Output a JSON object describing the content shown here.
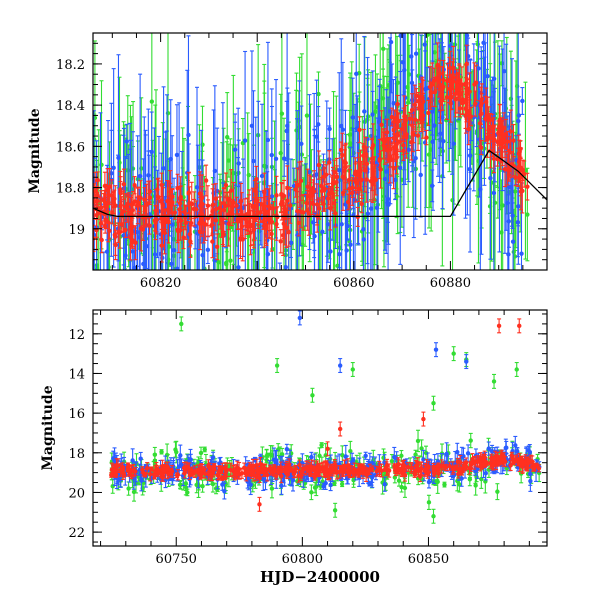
{
  "chart_data": [
    {
      "type": "scatter",
      "title": "",
      "xlabel": "",
      "ylabel": "Magnitude",
      "xlim": [
        60806,
        60900
      ],
      "ylim": [
        19.2,
        18.05
      ],
      "y_inverted": true,
      "xticks": [
        60820,
        60840,
        60860,
        60880
      ],
      "yticks": [
        18.2,
        18.4,
        18.6,
        18.8,
        19
      ],
      "ytick_labels": [
        "18.2",
        "18.4",
        "18.6",
        "18.8",
        "19"
      ],
      "series": [
        {
          "color": "#2a5cff",
          "note": "blue filter points with error bars"
        },
        {
          "color": "#33dd33",
          "note": "green filter points with error bars"
        },
        {
          "color": "#ff3020",
          "note": "red filter points with error bars"
        }
      ],
      "baseline_light_curve": {
        "x": [
          60806,
          60815,
          60825,
          60835,
          60845,
          60855,
          60862,
          60868,
          60873,
          60877,
          60880,
          60883,
          60887,
          60892,
          60900
        ],
        "y": [
          18.93,
          18.93,
          18.94,
          18.93,
          18.9,
          18.82,
          18.72,
          18.58,
          18.45,
          18.35,
          18.32,
          18.36,
          18.48,
          18.65,
          18.82
        ]
      },
      "model_line": {
        "color": "#000000",
        "x": [
          60806,
          60809,
          60811,
          60880,
          60888,
          60894,
          60900
        ],
        "y": [
          18.9,
          18.93,
          18.94,
          18.94,
          18.62,
          18.72,
          18.86
        ]
      },
      "grid": false,
      "legend": "none"
    },
    {
      "type": "scatter",
      "title": "",
      "xlabel": "HJD−2400000",
      "ylabel": "Magnitude",
      "xlim": [
        60717,
        60897
      ],
      "ylim": [
        22.7,
        10.8
      ],
      "y_inverted": true,
      "xticks": [
        60750,
        60800,
        60850
      ],
      "yticks": [
        12,
        14,
        16,
        18,
        20,
        22
      ],
      "ytick_labels": [
        "12",
        "14",
        "16",
        "18",
        "20",
        "22"
      ],
      "outliers": {
        "green": [
          {
            "x": 60752,
            "y": 11.5
          },
          {
            "x": 60790,
            "y": 13.6
          },
          {
            "x": 60804,
            "y": 15.1
          },
          {
            "x": 60820,
            "y": 13.8
          },
          {
            "x": 60852,
            "y": 15.5
          },
          {
            "x": 60860,
            "y": 13.0
          },
          {
            "x": 60865,
            "y": 13.3
          },
          {
            "x": 60876,
            "y": 14.4
          },
          {
            "x": 60885,
            "y": 13.8
          },
          {
            "x": 60852,
            "y": 21.2
          },
          {
            "x": 60813,
            "y": 20.9
          }
        ],
        "blue": [
          {
            "x": 60799,
            "y": 11.2
          },
          {
            "x": 60815,
            "y": 13.6
          },
          {
            "x": 60853,
            "y": 12.8
          },
          {
            "x": 60865,
            "y": 13.4
          }
        ],
        "red": [
          {
            "x": 60815,
            "y": 16.8
          },
          {
            "x": 60810,
            "y": 17.8
          },
          {
            "x": 60848,
            "y": 16.3
          },
          {
            "x": 60878,
            "y": 11.6
          },
          {
            "x": 60886,
            "y": 11.6
          },
          {
            "x": 60783,
            "y": 20.6
          }
        ]
      },
      "baseline_light_curve": {
        "x": [
          60724,
          60735,
          60750,
          60765,
          60780,
          60800,
          60815,
          60830,
          60845,
          60855,
          60865,
          60873,
          60878,
          60882,
          60887,
          60893
        ],
        "y": [
          18.95,
          18.95,
          18.92,
          18.95,
          18.93,
          18.92,
          18.9,
          18.85,
          18.85,
          18.8,
          18.65,
          18.45,
          18.3,
          18.32,
          18.45,
          18.75
        ]
      },
      "grid": false,
      "legend": "none"
    }
  ]
}
